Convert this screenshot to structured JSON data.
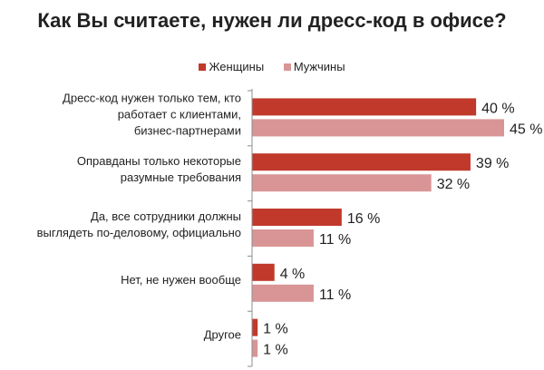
{
  "chart_data": {
    "type": "bar",
    "orientation": "horizontal",
    "title": "Как Вы считаете, нужен ли дресс-код в офисе?",
    "legend_position": "top",
    "grid": false,
    "xlim": [
      0,
      45
    ],
    "categories": [
      "Дресс-код нужен только тем, кто работает с клиентами, бизнес-партнерами",
      "Оправданы только некоторые разумные требования",
      "Да, все сотрудники должны выглядеть по-деловому, официально",
      "Нет, не нужен вообще",
      "Другое"
    ],
    "series": [
      {
        "name": "Женщины",
        "color": "#c0392b",
        "values": [
          40,
          39,
          16,
          4,
          1
        ],
        "labels": [
          "40 %",
          "39 %",
          "16 %",
          "4 %",
          "1 %"
        ]
      },
      {
        "name": "Мужчины",
        "color": "#d99596",
        "values": [
          45,
          32,
          11,
          11,
          1
        ],
        "labels": [
          "45 %",
          "32 %",
          "11 %",
          "11 %",
          "1 %"
        ]
      }
    ]
  }
}
